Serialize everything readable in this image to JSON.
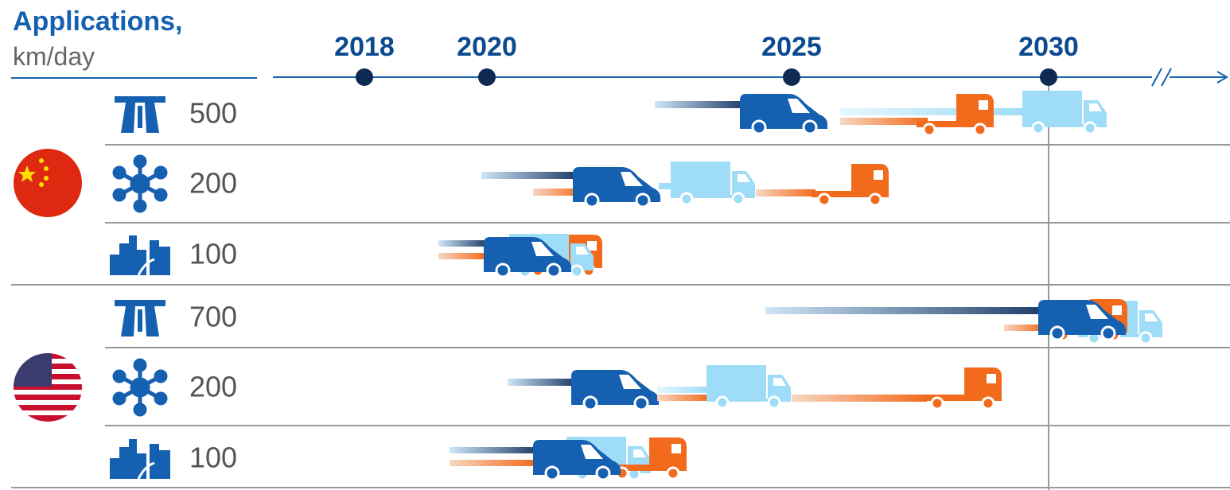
{
  "header": {
    "title": "Applications,",
    "subtitle": "km/day"
  },
  "timeline": {
    "years": [
      "2018",
      "2020",
      "2025",
      "2030"
    ]
  },
  "rows": [
    {
      "distance": "500"
    },
    {
      "distance": "200"
    },
    {
      "distance": "100"
    },
    {
      "distance": "700"
    },
    {
      "distance": "200"
    },
    {
      "distance": "100"
    }
  ]
}
